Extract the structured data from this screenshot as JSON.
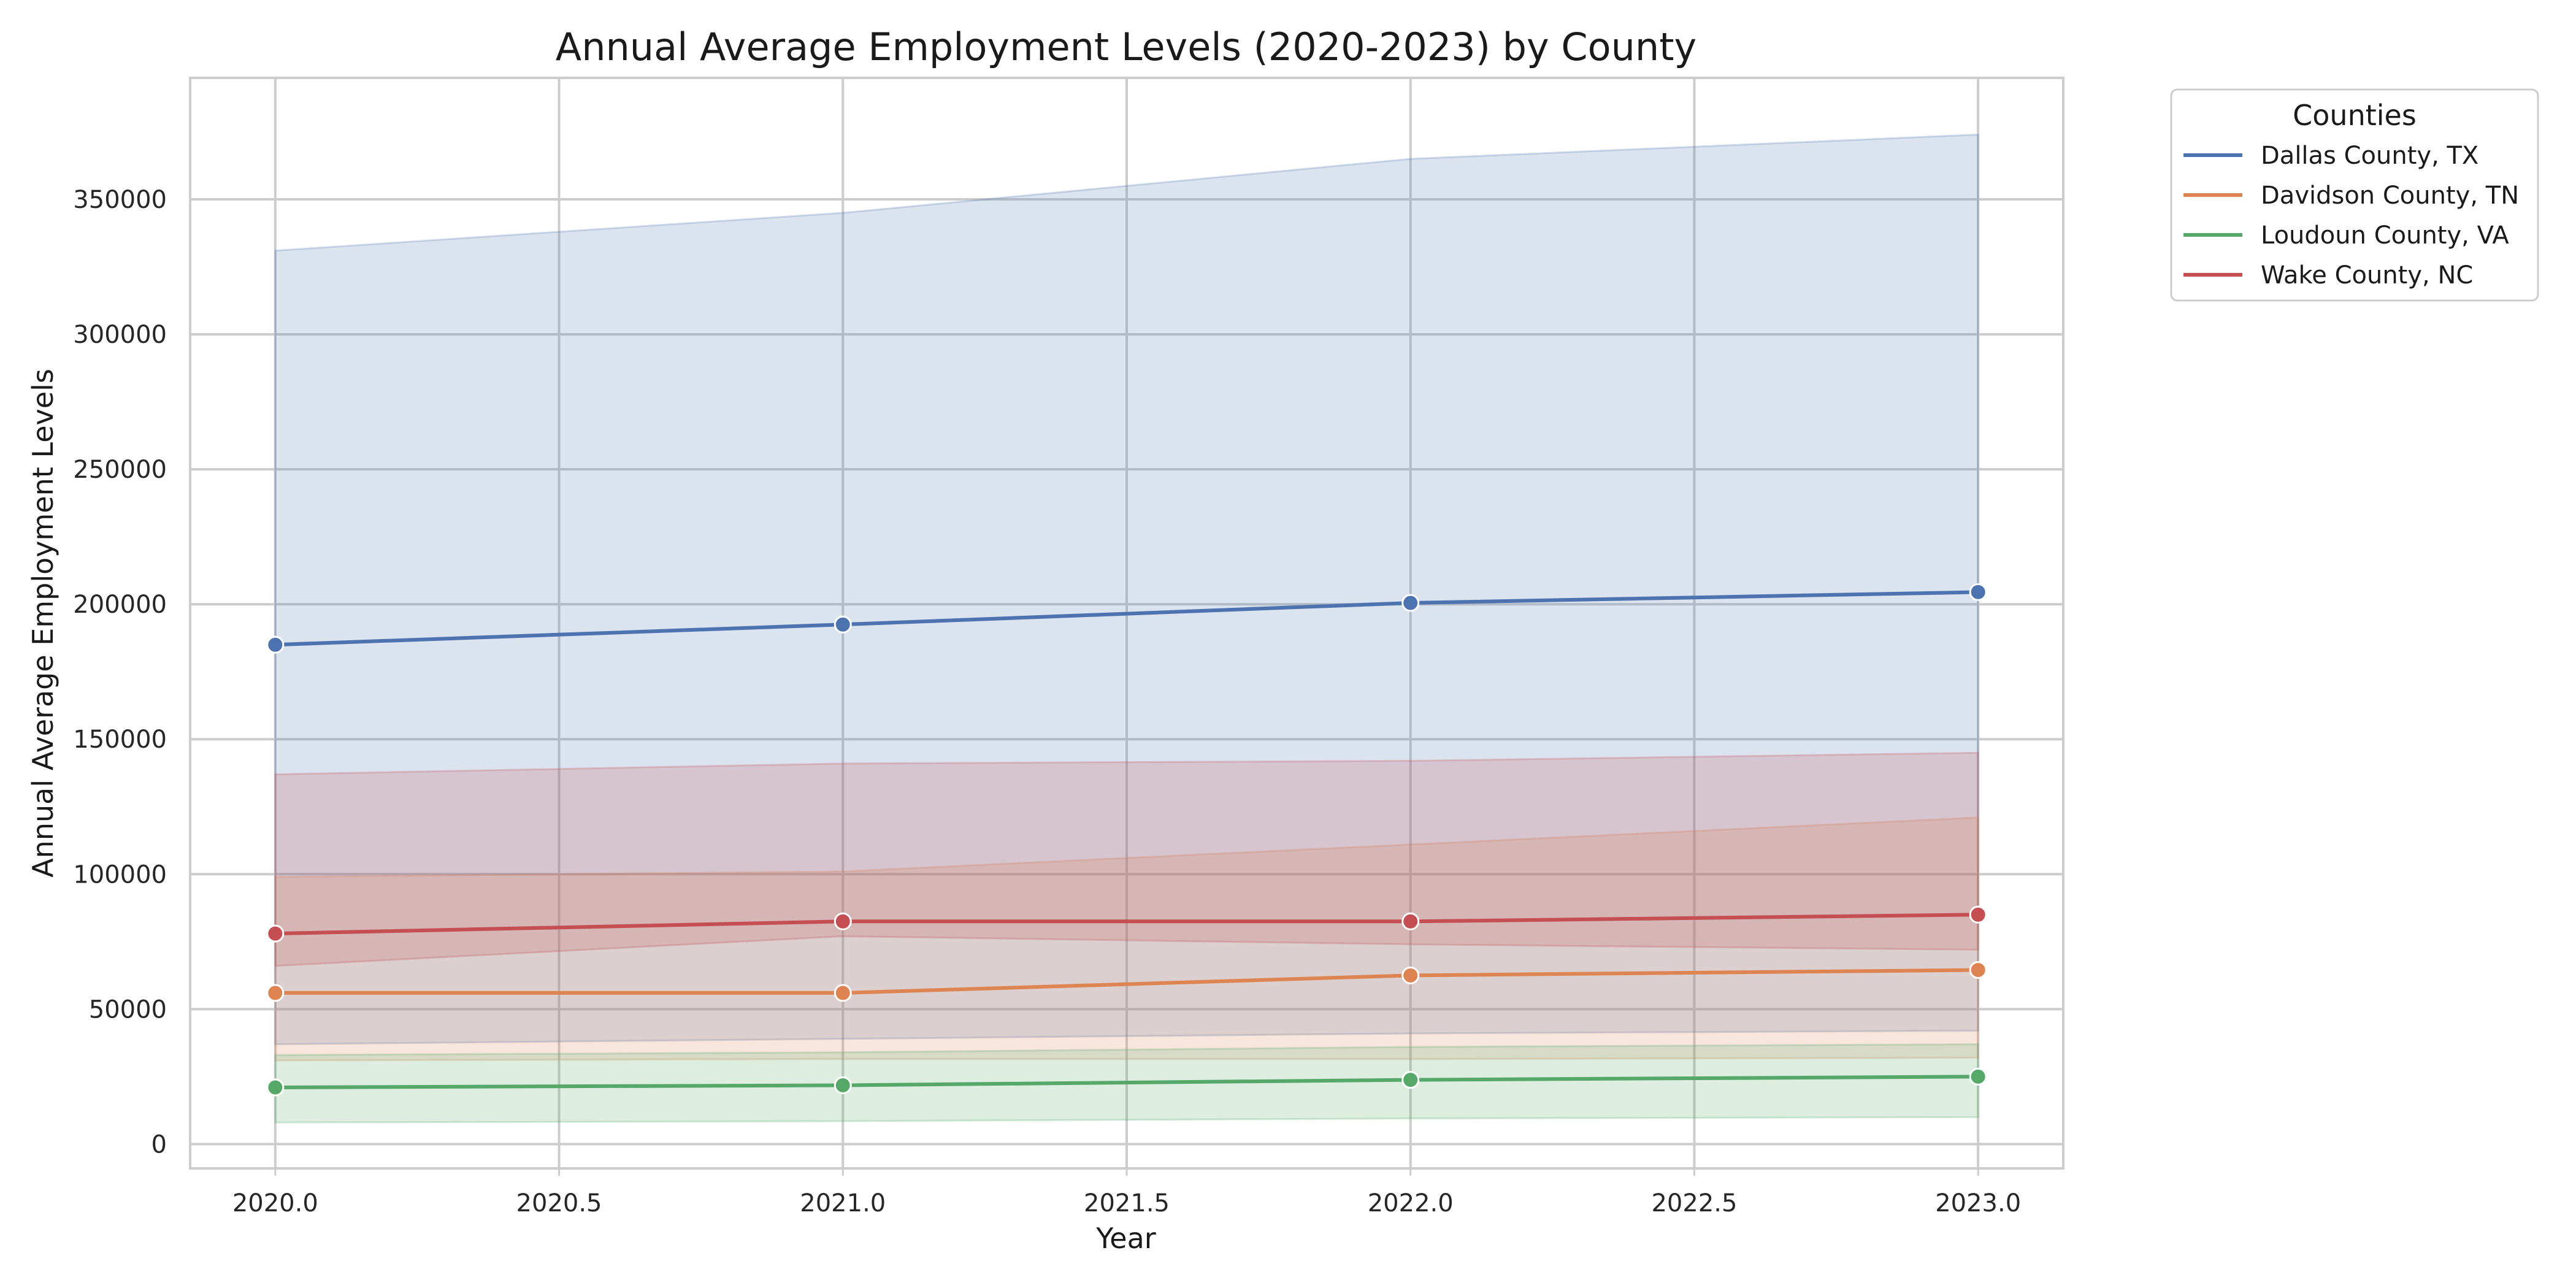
{
  "chart_data": {
    "type": "line",
    "title": "Annual Average Employment Levels (2020-2023) by County",
    "xlabel": "Year",
    "ylabel": "Annual Average Employment Levels",
    "xlim": [
      2019.85,
      2023.15
    ],
    "ylim": [
      -9000,
      395000
    ],
    "x_ticks": [
      2020.0,
      2020.5,
      2021.0,
      2021.5,
      2022.0,
      2022.5,
      2023.0
    ],
    "x_tick_labels": [
      "2020.0",
      "2020.5",
      "2021.0",
      "2021.5",
      "2022.0",
      "2022.5",
      "2023.0"
    ],
    "y_ticks": [
      0,
      50000,
      100000,
      150000,
      200000,
      250000,
      300000,
      350000
    ],
    "y_tick_labels": [
      "0",
      "50000",
      "100000",
      "150000",
      "200000",
      "250000",
      "300000",
      "350000"
    ],
    "grid": true,
    "legend": {
      "title": "Counties",
      "placement": "outside-top-right"
    },
    "x": [
      2020,
      2021,
      2022,
      2023
    ],
    "series": [
      {
        "name": "Dallas County, TX",
        "color": "#4c72b0",
        "values": [
          185000,
          192500,
          200500,
          204500
        ],
        "ci_lower": [
          37000,
          39000,
          41000,
          42000
        ],
        "ci_upper": [
          331000,
          345000,
          365000,
          374000
        ]
      },
      {
        "name": "Davidson County, TN",
        "color": "#dd8452",
        "values": [
          56000,
          56000,
          62500,
          64500
        ],
        "ci_lower": [
          31000,
          31500,
          31500,
          32000
        ],
        "ci_upper": [
          99000,
          101000,
          111000,
          121000
        ]
      },
      {
        "name": "Loudoun County, VA",
        "color": "#55a868",
        "values": [
          21000,
          21800,
          23800,
          25000
        ],
        "ci_lower": [
          8000,
          8500,
          9500,
          10000
        ],
        "ci_upper": [
          33000,
          34000,
          36000,
          37000
        ]
      },
      {
        "name": "Wake County, NC",
        "color": "#c44e52",
        "values": [
          78000,
          82500,
          82500,
          85000
        ],
        "ci_lower": [
          66000,
          77000,
          74000,
          72000
        ],
        "ci_upper": [
          137000,
          141000,
          142000,
          145000
        ]
      }
    ]
  }
}
